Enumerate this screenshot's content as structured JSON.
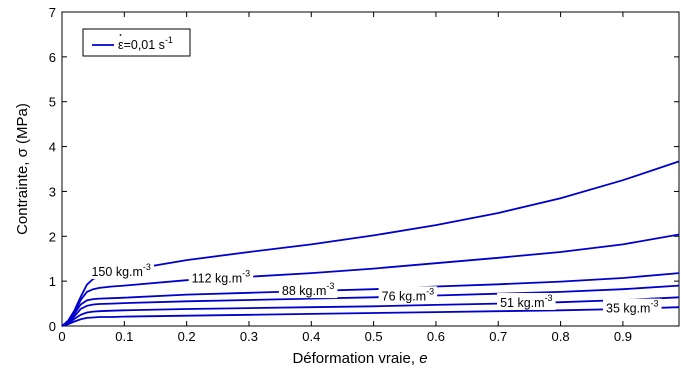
{
  "chart_data": {
    "type": "line",
    "xlabel": "Déformation vraie, e",
    "ylabel": "Contrainte, σ (MPa)",
    "xlim": [
      0,
      0.99
    ],
    "ylim": [
      0,
      7
    ],
    "xticks": [
      "0",
      "0.1",
      "0.2",
      "0.3",
      "0.4",
      "0.5",
      "0.6",
      "0.7",
      "0.8",
      "0.9"
    ],
    "yticks": [
      "0",
      "1",
      "2",
      "3",
      "4",
      "5",
      "6",
      "7"
    ],
    "legend": {
      "position": "top-left",
      "entry": "ε=0,01 s",
      "superscript": "-1"
    },
    "line_color": "#0000cc",
    "series": [
      {
        "name": "150 kg.m",
        "superscript": "-3",
        "x": [
          0,
          0.01,
          0.02,
          0.03,
          0.04,
          0.05,
          0.06,
          0.08,
          0.1,
          0.15,
          0.2,
          0.3,
          0.4,
          0.5,
          0.6,
          0.7,
          0.8,
          0.9,
          0.99
        ],
        "y": [
          0,
          0.12,
          0.35,
          0.65,
          0.92,
          1.05,
          1.1,
          1.16,
          1.22,
          1.35,
          1.47,
          1.65,
          1.82,
          2.02,
          2.25,
          2.52,
          2.85,
          3.25,
          3.67
        ]
      },
      {
        "name": "112 kg.m",
        "superscript": "-3",
        "x": [
          0,
          0.01,
          0.02,
          0.03,
          0.04,
          0.05,
          0.06,
          0.08,
          0.1,
          0.2,
          0.3,
          0.4,
          0.5,
          0.6,
          0.7,
          0.8,
          0.9,
          0.99
        ],
        "y": [
          0,
          0.1,
          0.3,
          0.58,
          0.76,
          0.82,
          0.85,
          0.88,
          0.9,
          1.02,
          1.1,
          1.18,
          1.28,
          1.4,
          1.52,
          1.65,
          1.82,
          2.04
        ]
      },
      {
        "name": "88 kg.m",
        "superscript": "-3",
        "x": [
          0,
          0.01,
          0.02,
          0.03,
          0.04,
          0.05,
          0.06,
          0.08,
          0.1,
          0.2,
          0.3,
          0.4,
          0.5,
          0.6,
          0.7,
          0.8,
          0.9,
          0.99
        ],
        "y": [
          0,
          0.08,
          0.28,
          0.48,
          0.57,
          0.6,
          0.61,
          0.62,
          0.63,
          0.7,
          0.74,
          0.78,
          0.82,
          0.88,
          0.93,
          0.99,
          1.07,
          1.18
        ]
      },
      {
        "name": "76 kg.m",
        "superscript": "-3",
        "x": [
          0,
          0.01,
          0.02,
          0.03,
          0.04,
          0.05,
          0.06,
          0.08,
          0.1,
          0.2,
          0.3,
          0.4,
          0.5,
          0.6,
          0.7,
          0.8,
          0.9,
          0.99
        ],
        "y": [
          0,
          0.07,
          0.22,
          0.38,
          0.45,
          0.48,
          0.49,
          0.5,
          0.51,
          0.55,
          0.58,
          0.61,
          0.64,
          0.68,
          0.72,
          0.76,
          0.82,
          0.9
        ]
      },
      {
        "name": "51 kg.m",
        "superscript": "-3",
        "x": [
          0,
          0.01,
          0.02,
          0.03,
          0.04,
          0.05,
          0.06,
          0.08,
          0.1,
          0.2,
          0.3,
          0.4,
          0.5,
          0.6,
          0.7,
          0.8,
          0.9,
          0.99
        ],
        "y": [
          0,
          0.06,
          0.16,
          0.25,
          0.3,
          0.32,
          0.33,
          0.34,
          0.35,
          0.38,
          0.4,
          0.42,
          0.44,
          0.47,
          0.5,
          0.53,
          0.58,
          0.64
        ]
      },
      {
        "name": "35 kg.m",
        "superscript": "-3",
        "x": [
          0,
          0.01,
          0.02,
          0.03,
          0.04,
          0.05,
          0.06,
          0.08,
          0.1,
          0.2,
          0.3,
          0.4,
          0.5,
          0.6,
          0.7,
          0.8,
          0.9,
          0.99
        ],
        "y": [
          0,
          0.04,
          0.1,
          0.15,
          0.18,
          0.19,
          0.2,
          0.2,
          0.21,
          0.23,
          0.25,
          0.27,
          0.29,
          0.31,
          0.33,
          0.35,
          0.38,
          0.42
        ]
      }
    ]
  }
}
